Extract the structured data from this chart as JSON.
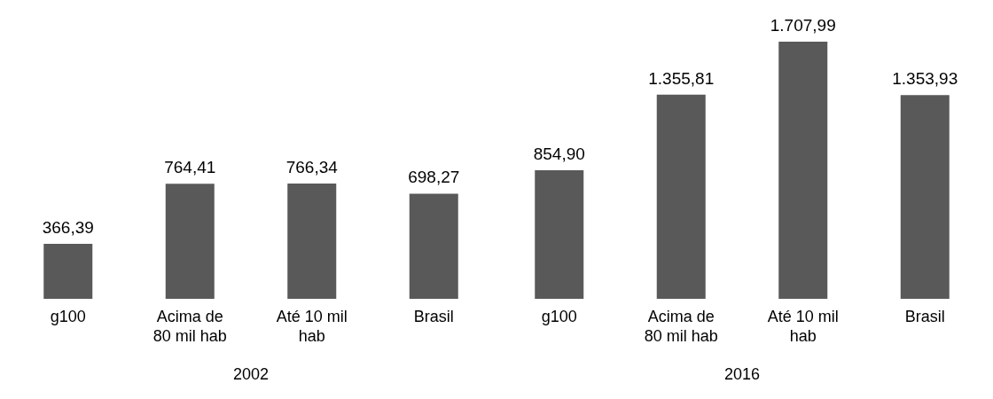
{
  "chart_data": [
    {
      "type": "bar",
      "xlabel": "2002",
      "categories": [
        "g100",
        "Acima de 80 mil hab",
        "Até 10 mil hab",
        "Brasil"
      ],
      "values": [
        366.39,
        764.41,
        766.34,
        698.27
      ],
      "color": "#595959",
      "value_labels": [
        "366,39",
        "764,41",
        "766,34",
        "698,27"
      ],
      "grid": false,
      "legend": false
    },
    {
      "type": "bar",
      "xlabel": "2016",
      "categories": [
        "g100",
        "Acima de 80 mil hab",
        "Até 10 mil hab",
        "Brasil"
      ],
      "values": [
        854.9,
        1355.81,
        1707.99,
        1353.93
      ],
      "color": "#595959",
      "value_labels": [
        "854,90",
        "1.355,81",
        "1.707,99",
        "1.353,93"
      ],
      "grid": false,
      "legend": false
    }
  ]
}
